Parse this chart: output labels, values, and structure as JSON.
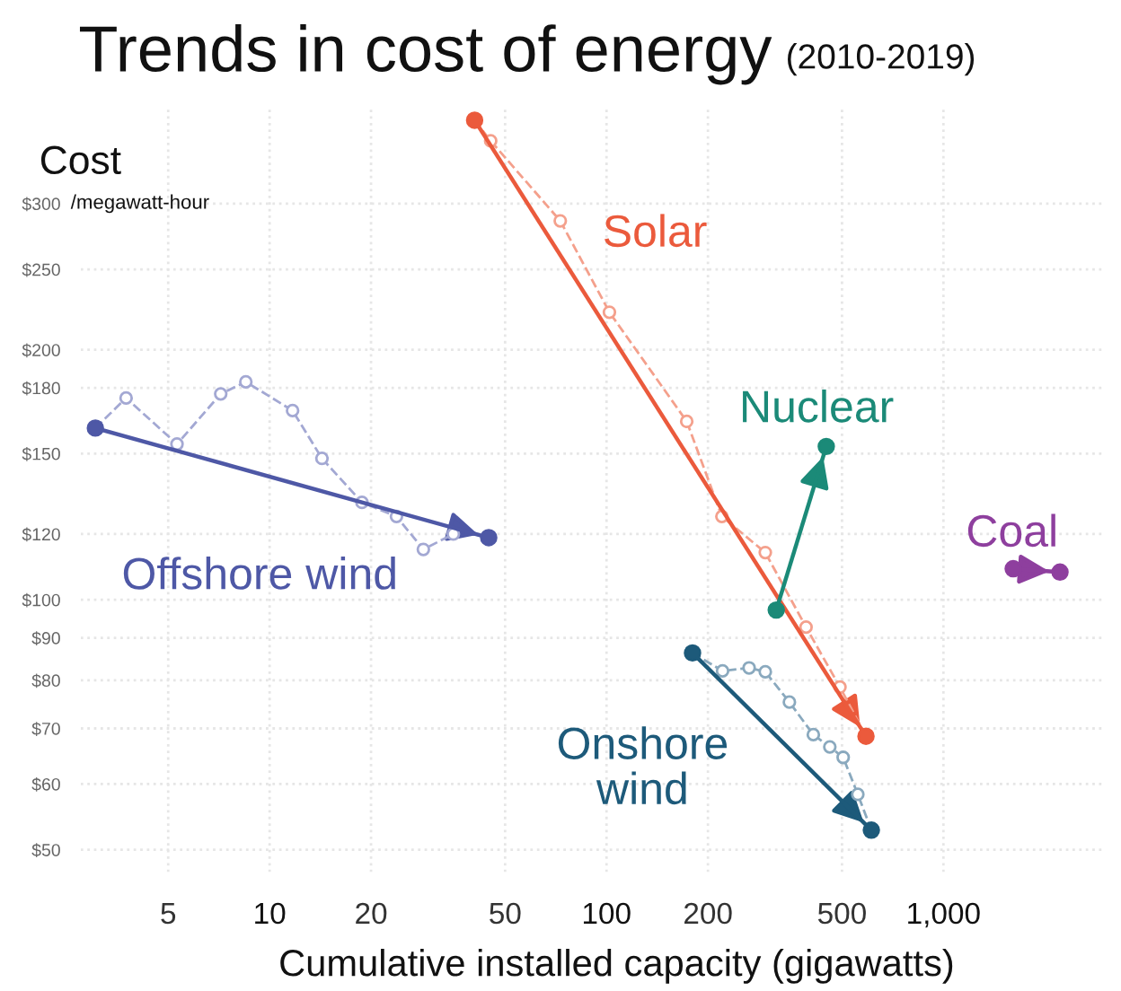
{
  "chart_data": {
    "type": "line",
    "title": "Trends in cost of energy",
    "subtitle": "(2010-2019)",
    "ylabel": "Cost",
    "xlabel": "Cumulative installed capacity (gigawatts)",
    "annotations": [
      "/megawatt-hour"
    ],
    "log": "xy",
    "xlim": [
      2.75,
      3000
    ],
    "ylim": [
      47,
      390
    ],
    "xticks": [
      5,
      10,
      20,
      50,
      100,
      200,
      500,
      {
        "value": 1000,
        "label": "1,000"
      }
    ],
    "yticks": [
      {
        "value": 50,
        "label": "$50"
      },
      {
        "value": 60,
        "label": "$60"
      },
      {
        "value": 70,
        "label": "$70"
      },
      {
        "value": 80,
        "label": "$80"
      },
      {
        "value": 90,
        "label": "$90"
      },
      {
        "value": 100,
        "label": "$100"
      },
      {
        "value": 120,
        "label": "$120"
      },
      {
        "value": 150,
        "label": "$150"
      },
      {
        "value": 180,
        "label": "$180"
      },
      {
        "value": 200,
        "label": "$200"
      },
      {
        "value": 250,
        "label": "$250"
      },
      {
        "value": 300,
        "label": "$300"
      }
    ],
    "grid": true,
    "series": [
      {
        "name": "Solar",
        "color": "#eb5a3c",
        "x": [
          40.6,
          589
        ],
        "values": [
          378,
          68.5
        ],
        "line_style": "solid",
        "marker": "circle"
      },
      {
        "color": "#f4a08c",
        "x": [
          40.6,
          45.3,
          72.9,
          102,
          173,
          220,
          296,
          391,
          493,
          589
        ],
        "values": [
          378,
          357,
          286,
          222,
          164,
          126,
          114,
          92.7,
          78.5,
          68.5
        ],
        "line_style": "dashed",
        "marker": "circle"
      },
      {
        "name": "Nuclear",
        "color": "#1b8a78",
        "x": [
          319,
          449
        ],
        "values": [
          97.2,
          153
        ],
        "line_style": "solid",
        "marker": "circle"
      },
      {
        "name": "Coal",
        "color": "#8e3f9e",
        "x": [
          1611,
          2218
        ],
        "values": [
          109,
          108
        ],
        "line_style": "solid",
        "marker": "circle"
      },
      {
        "name": "Offshore wind",
        "color": "#4e58a6",
        "x": [
          3.04,
          44.7
        ],
        "values": [
          161,
          118.8
        ],
        "line_style": "solid",
        "marker": "circle"
      },
      {
        "color": "#a3a8d3",
        "x": [
          3.04,
          3.75,
          5.31,
          7.16,
          8.5,
          11.7,
          14.3,
          18.8,
          23.8,
          28.6,
          35.1
        ],
        "values": [
          161,
          175,
          154,
          177,
          183,
          169,
          148,
          131,
          126,
          115,
          120
        ],
        "line_style": "dashed",
        "marker": "circle"
      },
      {
        "name": "Onshore\nwind",
        "color": "#1d5a7a",
        "x": [
          180,
          611
        ],
        "values": [
          86.3,
          52.8
        ],
        "line_style": "solid",
        "marker": "circle"
      },
      {
        "color": "#8aa9be",
        "x": [
          180,
          221,
          265,
          296,
          349,
          411,
          460,
          504,
          557,
          611
        ],
        "values": [
          86.3,
          82.1,
          82.8,
          81.9,
          75.3,
          68.8,
          66.5,
          64.6,
          58.3,
          52.8
        ],
        "line_style": "dashed",
        "marker": "circle"
      }
    ]
  }
}
